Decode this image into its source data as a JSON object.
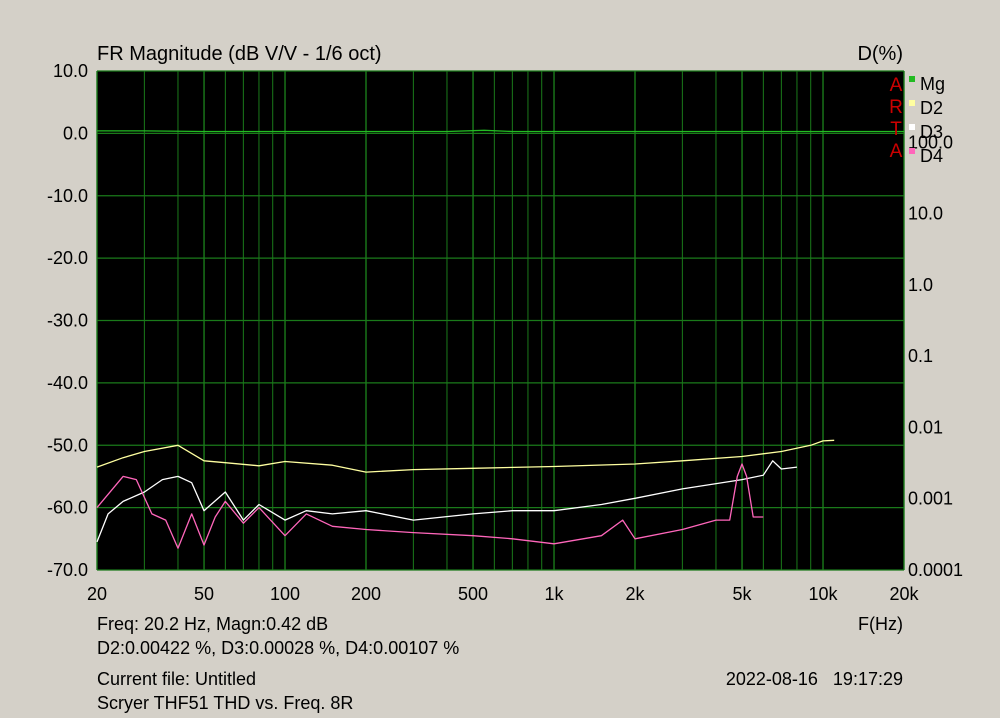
{
  "chart_data": {
    "type": "line",
    "title": "FR Magnitude (dB V/V - 1/6 oct)",
    "right_axis_title": "D(%)",
    "xlabel": "F(Hz)",
    "x_scale": "log",
    "xlim": [
      20,
      20000
    ],
    "x_ticks": [
      20,
      50,
      100,
      200,
      500,
      1000,
      2000,
      5000,
      10000,
      20000
    ],
    "x_tick_labels": [
      "20",
      "50",
      "100",
      "200",
      "500",
      "1k",
      "2k",
      "5k",
      "10k",
      "20k"
    ],
    "ylim": [
      -70,
      10
    ],
    "y_ticks": [
      10,
      0,
      -10,
      -20,
      -30,
      -40,
      -50,
      -60,
      -70
    ],
    "y_tick_labels": [
      "10.0",
      "0.0",
      "-10.0",
      "-20.0",
      "-30.0",
      "-40.0",
      "-50.0",
      "-60.0",
      "-70.0"
    ],
    "y2_scale": "log",
    "y2lim": [
      0.0001,
      1000
    ],
    "y2_ticks": [
      100,
      10,
      1,
      0.1,
      0.01,
      0.001,
      0.0001
    ],
    "y2_tick_labels": [
      "100.0",
      "10.0",
      "1.0",
      "0.1",
      "0.01",
      "0.001",
      "0.0001"
    ],
    "grid": true,
    "legend_position": "top-right",
    "watermark": [
      "A",
      "R",
      "T",
      "A"
    ],
    "colors": {
      "plot_background": "#000000",
      "grid": "#1a7a1a",
      "Mg": "#22bb22",
      "D2": "#ffffa0",
      "D3": "#ffffff",
      "D4": "#ff66bb",
      "watermark": "#cc0000"
    },
    "series": [
      {
        "name": "Mg",
        "axis": "left",
        "x": [
          20,
          30,
          50,
          100,
          200,
          400,
          550,
          700,
          1000,
          2000,
          5000,
          10000,
          15000,
          20000
        ],
        "y": [
          0.4,
          0.4,
          0.3,
          0.3,
          0.3,
          0.3,
          0.5,
          0.3,
          0.3,
          0.3,
          0.3,
          0.3,
          0.3,
          0.3
        ]
      },
      {
        "name": "D2",
        "axis": "left",
        "x": [
          20,
          25,
          30,
          40,
          50,
          60,
          80,
          100,
          150,
          200,
          300,
          500,
          1000,
          2000,
          3000,
          5000,
          7000,
          9000,
          10000,
          11000
        ],
        "y": [
          -53.5,
          -52,
          -51,
          -50,
          -52.5,
          -52.8,
          -53.3,
          -52.6,
          -53.2,
          -54.3,
          -53.9,
          -53.7,
          -53.4,
          -53.0,
          -52.5,
          -51.8,
          -51,
          -50,
          -49.3,
          -49.2
        ]
      },
      {
        "name": "D3",
        "axis": "left",
        "x": [
          20,
          22,
          25,
          30,
          35,
          40,
          45,
          50,
          60,
          70,
          80,
          100,
          120,
          150,
          200,
          300,
          500,
          700,
          1000,
          1500,
          2000,
          3000,
          5000,
          6000,
          6500,
          7000,
          8000
        ],
        "y": [
          -65.5,
          -61,
          -59,
          -57.5,
          -55.5,
          -55,
          -56,
          -60.5,
          -57.5,
          -62,
          -59.5,
          -62,
          -60.5,
          -61,
          -60.5,
          -62,
          -61,
          -60.5,
          -60.5,
          -59.5,
          -58.5,
          -57,
          -55.5,
          -54.8,
          -52.5,
          -53.8,
          -53.5
        ]
      },
      {
        "name": "D4",
        "axis": "left",
        "x": [
          20,
          25,
          28,
          32,
          36,
          40,
          45,
          50,
          55,
          60,
          70,
          80,
          100,
          120,
          150,
          200,
          300,
          500,
          700,
          1000,
          1500,
          1800,
          2000,
          3000,
          4000,
          4500,
          4800,
          5000,
          5200,
          5500,
          6000
        ],
        "y": [
          -60,
          -55,
          -55.5,
          -61,
          -62,
          -66.5,
          -61,
          -66,
          -61.5,
          -59,
          -62.5,
          -60,
          -64.5,
          -61,
          -63,
          -63.5,
          -64,
          -64.5,
          -65,
          -65.8,
          -64.5,
          -62,
          -65,
          -63.5,
          -62,
          -62,
          -55,
          -53,
          -55,
          -61.5,
          -61.5
        ]
      }
    ]
  },
  "info": {
    "cursor_line": "Freq: 20.2 Hz, Magn:0.42 dB",
    "distortion_line": "D2:0.00422 %, D3:0.00028 %, D4:0.00107 %",
    "current_file": "Current file: Untitled",
    "description": "Scryer THF51 THD vs. Freq. 8R",
    "datetime": "2022-08-16   19:17:29"
  }
}
